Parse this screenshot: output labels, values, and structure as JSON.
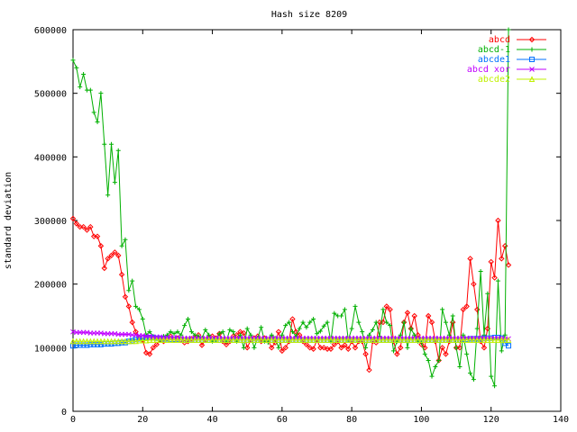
{
  "chart_data": {
    "type": "line",
    "title": "Hash size 8209",
    "xlabel": "",
    "ylabel": "standard deviation",
    "xlim": [
      0,
      140
    ],
    "ylim": [
      0,
      600000
    ],
    "xticks": [
      0,
      20,
      40,
      60,
      80,
      100,
      120,
      140
    ],
    "yticks": [
      0,
      100000,
      200000,
      300000,
      400000,
      500000,
      600000
    ],
    "grid": false,
    "legend_position": "top-right",
    "x": [
      0,
      1,
      2,
      3,
      4,
      5,
      6,
      7,
      8,
      9,
      10,
      11,
      12,
      13,
      14,
      15,
      16,
      17,
      18,
      19,
      20,
      21,
      22,
      23,
      24,
      25,
      26,
      27,
      28,
      29,
      30,
      31,
      32,
      33,
      34,
      35,
      36,
      37,
      38,
      39,
      40,
      41,
      42,
      43,
      44,
      45,
      46,
      47,
      48,
      49,
      50,
      51,
      52,
      53,
      54,
      55,
      56,
      57,
      58,
      59,
      60,
      61,
      62,
      63,
      64,
      65,
      66,
      67,
      68,
      69,
      70,
      71,
      72,
      73,
      74,
      75,
      76,
      77,
      78,
      79,
      80,
      81,
      82,
      83,
      84,
      85,
      86,
      87,
      88,
      89,
      90,
      91,
      92,
      93,
      94,
      95,
      96,
      97,
      98,
      99,
      100,
      101,
      102,
      103,
      104,
      105,
      106,
      107,
      108,
      109,
      110,
      111,
      112,
      113,
      114,
      115,
      116,
      117,
      118,
      119,
      120,
      121,
      122,
      123,
      124,
      125
    ],
    "series": [
      {
        "name": "abcd",
        "color": "#ff0000",
        "marker": "diamond",
        "values": [
          303000,
          295000,
          290000,
          290000,
          285000,
          290000,
          275000,
          275000,
          260000,
          225000,
          240000,
          245000,
          250000,
          245000,
          215000,
          180000,
          165000,
          140000,
          125000,
          115000,
          112000,
          92000,
          90000,
          100000,
          105000,
          112000,
          110000,
          115000,
          118000,
          112000,
          115000,
          112000,
          108000,
          110000,
          114000,
          116000,
          120000,
          104000,
          112000,
          116000,
          118000,
          115000,
          122000,
          110000,
          105000,
          110000,
          118000,
          120000,
          125000,
          123000,
          100000,
          112000,
          115000,
          118000,
          110000,
          115000,
          112000,
          100000,
          108000,
          125000,
          95000,
          100000,
          110000,
          145000,
          125000,
          120000,
          110000,
          105000,
          100000,
          98000,
          112000,
          100000,
          100000,
          98000,
          98000,
          105000,
          110000,
          100000,
          104000,
          98000,
          110000,
          100000,
          110000,
          110000,
          90000,
          65000,
          110000,
          108000,
          140000,
          140000,
          165000,
          160000,
          110000,
          90000,
          100000,
          140000,
          155000,
          130000,
          150000,
          120000,
          105000,
          100000,
          150000,
          140000,
          110000,
          80000,
          100000,
          90000,
          110000,
          140000,
          100000,
          100000,
          160000,
          165000,
          240000,
          200000,
          160000,
          110000,
          100000,
          130000,
          235000,
          210000,
          300000,
          240000,
          260000,
          230000
        ]
      },
      {
        "name": "abcd-1",
        "color": "#00b000",
        "marker": "plus",
        "values": [
          552000,
          540000,
          510000,
          530000,
          505000,
          505000,
          470000,
          455000,
          500000,
          420000,
          340000,
          420000,
          360000,
          410000,
          260000,
          270000,
          190000,
          205000,
          165000,
          160000,
          145000,
          120000,
          125000,
          118000,
          115000,
          112000,
          118000,
          120000,
          125000,
          122000,
          125000,
          120000,
          135000,
          145000,
          125000,
          120000,
          118000,
          115000,
          128000,
          120000,
          110000,
          112000,
          122000,
          125000,
          110000,
          128000,
          125000,
          110000,
          120000,
          100000,
          130000,
          120000,
          100000,
          115000,
          132000,
          110000,
          108000,
          120000,
          115000,
          100000,
          120000,
          135000,
          140000,
          125000,
          118000,
          130000,
          140000,
          132000,
          140000,
          145000,
          122000,
          126000,
          134000,
          140000,
          110000,
          154000,
          150000,
          150000,
          160000,
          112000,
          130000,
          165000,
          140000,
          125000,
          100000,
          120000,
          128000,
          140000,
          118000,
          160000,
          140000,
          135000,
          95000,
          110000,
          120000,
          140000,
          100000,
          130000,
          120000,
          110000,
          108000,
          90000,
          80000,
          55000,
          70000,
          80000,
          160000,
          140000,
          120000,
          150000,
          100000,
          70000,
          120000,
          90000,
          60000,
          50000,
          130000,
          220000,
          120000,
          185000,
          55000,
          40000,
          205000,
          95000,
          120000,
          600000
        ]
      },
      {
        "name": "abcde1",
        "color": "#0070ff",
        "marker": "square",
        "values": [
          103000,
          104000,
          104000,
          104000,
          104000,
          105000,
          105000,
          105000,
          105000,
          106000,
          106000,
          106000,
          107000,
          107000,
          108000,
          108000,
          110000,
          111000,
          113000,
          114000,
          115000,
          116000,
          116000,
          116000,
          115000,
          115000,
          114000,
          114000,
          113000,
          113000,
          113000,
          112000,
          112000,
          112000,
          112000,
          112000,
          112000,
          112000,
          112000,
          112000,
          112000,
          112000,
          112000,
          112000,
          112000,
          112000,
          112000,
          112000,
          112000,
          112000,
          112000,
          112000,
          112000,
          112000,
          112000,
          112000,
          112000,
          112000,
          112000,
          112000,
          112000,
          112000,
          112000,
          112000,
          112000,
          112000,
          112000,
          112000,
          112000,
          112000,
          112000,
          112000,
          112000,
          112000,
          112000,
          112000,
          112000,
          112000,
          112000,
          112000,
          112000,
          112000,
          112000,
          112000,
          112000,
          112000,
          112000,
          112000,
          112000,
          112000,
          112000,
          112000,
          112000,
          112000,
          112000,
          112000,
          112000,
          112000,
          112000,
          112000,
          112000,
          112000,
          112000,
          112000,
          112000,
          112000,
          112000,
          112000,
          112000,
          112000,
          112000,
          112000,
          113000,
          113000,
          114000,
          114000,
          114000,
          114000,
          115000,
          115000,
          115000,
          116000,
          116000,
          115000,
          107000,
          103000
        ]
      },
      {
        "name": "abcd xor",
        "color": "#c000ff",
        "marker": "cross",
        "values": [
          125000,
          124000,
          124000,
          124000,
          124000,
          123000,
          123000,
          123000,
          123000,
          122000,
          122000,
          122000,
          122000,
          121000,
          121000,
          121000,
          121000,
          120000,
          120000,
          119000,
          119000,
          118000,
          118000,
          117000,
          117000,
          117000,
          116000,
          116000,
          116000,
          116000,
          116000,
          115000,
          115000,
          115000,
          115000,
          115000,
          115000,
          115000,
          115000,
          115000,
          115000,
          115000,
          115000,
          115000,
          115000,
          115000,
          115000,
          115000,
          115000,
          115000,
          115000,
          115000,
          115000,
          115000,
          115000,
          115000,
          115000,
          115000,
          115000,
          115000,
          115000,
          115000,
          115000,
          115000,
          115000,
          115000,
          115000,
          115000,
          115000,
          115000,
          115000,
          115000,
          115000,
          115000,
          115000,
          115000,
          115000,
          115000,
          115000,
          115000,
          115000,
          115000,
          115000,
          115000,
          115000,
          115000,
          115000,
          115000,
          115000,
          115000,
          115000,
          115000,
          115000,
          115000,
          115000,
          115000,
          115000,
          115000,
          115000,
          115000,
          115000,
          115000,
          115000,
          115000,
          115000,
          115000,
          115000,
          115000,
          115000,
          115000,
          115000,
          115000,
          115000,
          115000,
          115000,
          115000,
          115000,
          115000,
          115000,
          115000,
          115000,
          115000,
          115000,
          115000,
          114000,
          114000
        ]
      },
      {
        "name": "abcde2",
        "color": "#c0f000",
        "marker": "triangle",
        "values": [
          110000,
          110000,
          110000,
          110000,
          110000,
          110000,
          110000,
          110000,
          110000,
          110000,
          110000,
          110000,
          110000,
          110000,
          110000,
          110000,
          110000,
          110000,
          110000,
          111000,
          111000,
          111000,
          112000,
          112000,
          112000,
          112000,
          112000,
          112000,
          112000,
          112000,
          112000,
          112000,
          112000,
          112000,
          112000,
          112000,
          112000,
          112000,
          112000,
          112000,
          112000,
          112000,
          112000,
          112000,
          112000,
          112000,
          112000,
          112000,
          112000,
          112000,
          112000,
          112000,
          112000,
          112000,
          112000,
          112000,
          112000,
          112000,
          112000,
          112000,
          112000,
          112000,
          112000,
          112000,
          112000,
          112000,
          112000,
          112000,
          112000,
          112000,
          112000,
          112000,
          112000,
          112000,
          112000,
          112000,
          112000,
          112000,
          112000,
          112000,
          112000,
          112000,
          112000,
          112000,
          112000,
          112000,
          112000,
          112000,
          112000,
          112000,
          112000,
          112000,
          112000,
          112000,
          112000,
          112000,
          112000,
          112000,
          112000,
          112000,
          112000,
          112000,
          112000,
          112000,
          112000,
          112000,
          112000,
          112000,
          112000,
          112000,
          112000,
          112000,
          112000,
          112000,
          112000,
          112000,
          112000,
          112000,
          112000,
          112000,
          112000,
          112000,
          112000,
          112000,
          112000,
          112000
        ]
      }
    ]
  }
}
